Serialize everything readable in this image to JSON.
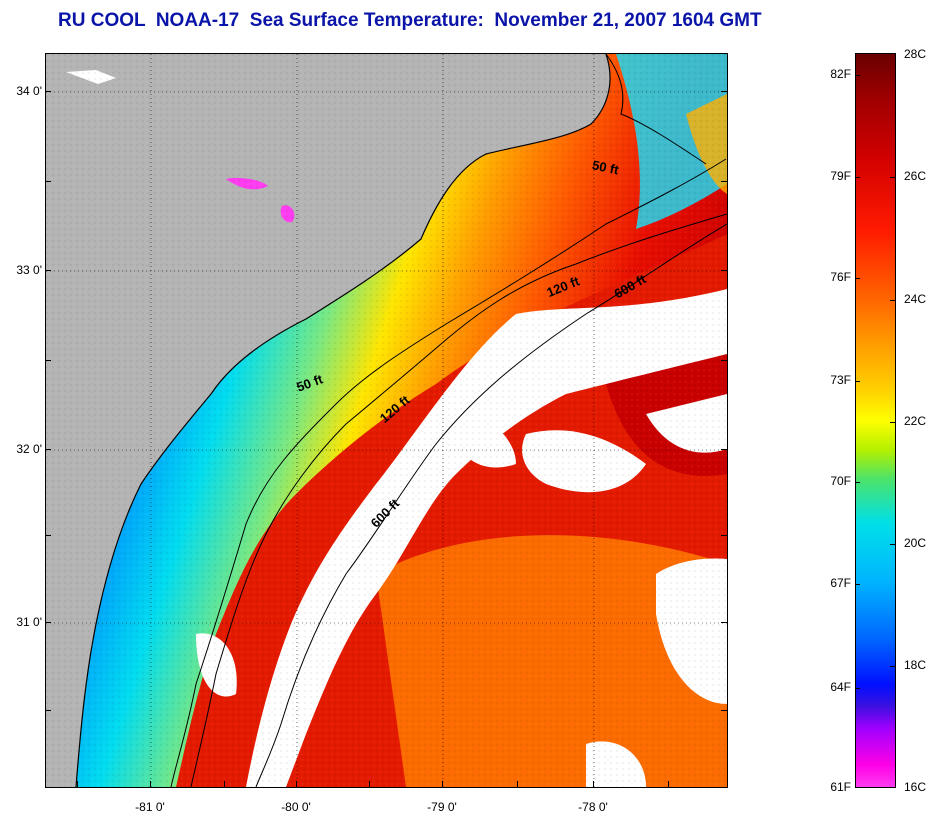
{
  "title": "RU COOL  NOAA-17  Sea Surface Temperature:  November 21, 2007 1604 GMT",
  "map": {
    "lat_labels": [
      "34 0'",
      "33 0'",
      "32 0'",
      "31 0'"
    ],
    "lon_labels": [
      "-81 0'",
      "-80 0'",
      "-79 0'",
      "-78 0'"
    ],
    "isobath_labels": [
      "50 ft",
      "50 ft",
      "120 ft",
      "120 ft",
      "600 ft",
      "600 ft"
    ],
    "colors": {
      "land": "#b4b4b4",
      "cloud": "#ffffff",
      "coastline": "#000000"
    }
  },
  "colorbar": {
    "fahrenheit_labels": [
      "82F",
      "79F",
      "76F",
      "73F",
      "70F",
      "67F",
      "64F",
      "61F"
    ],
    "celsius_labels": [
      "28C",
      "26C",
      "24C",
      "22C",
      "20C",
      "18C",
      "16C"
    ],
    "range_c": [
      16,
      28
    ]
  }
}
